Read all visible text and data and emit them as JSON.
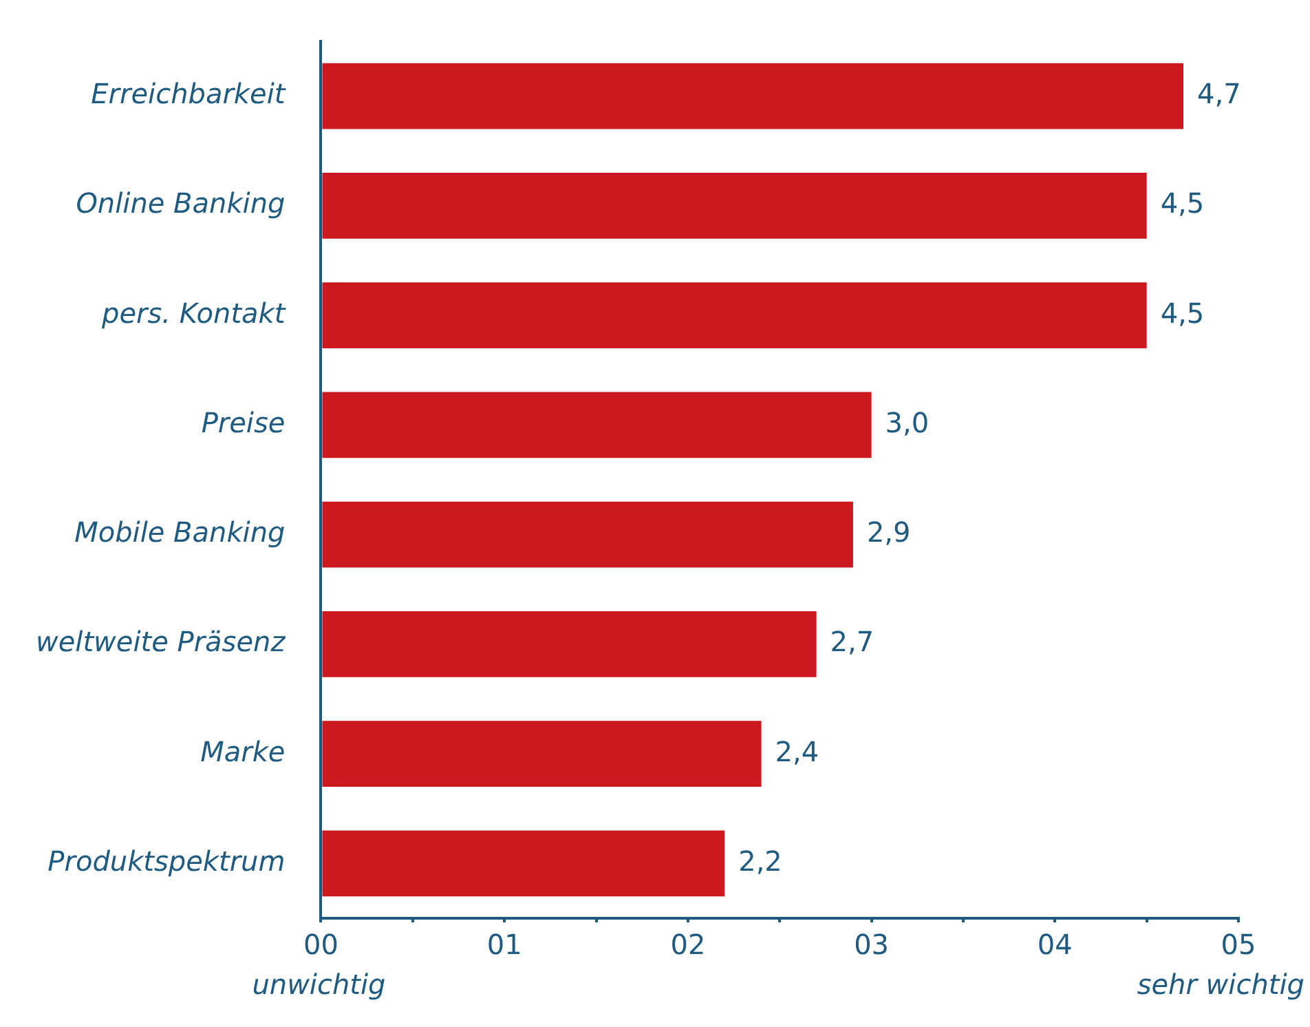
{
  "chart_data": {
    "type": "bar",
    "orientation": "horizontal",
    "categories": [
      "Erreichbarkeit",
      "Online Banking",
      "pers. Kontakt",
      "Preise",
      "Mobile Banking",
      "weltweite Präsenz",
      "Marke",
      "Produktspektrum"
    ],
    "values": [
      4.7,
      4.5,
      4.5,
      3.0,
      2.9,
      2.7,
      2.4,
      2.2
    ],
    "value_labels": [
      "4,7",
      "4,5",
      "4,5",
      "3,0",
      "2,9",
      "2,7",
      "2,4",
      "2,2"
    ],
    "color": "#cc181e",
    "xlim": [
      0,
      5
    ],
    "xticks": [
      {
        "value": 0,
        "label": "00"
      },
      {
        "value": 0.5,
        "label": null
      },
      {
        "value": 1,
        "label": "01"
      },
      {
        "value": 1.5,
        "label": null
      },
      {
        "value": 2,
        "label": "02"
      },
      {
        "value": 2.5,
        "label": null
      },
      {
        "value": 3,
        "label": "03"
      },
      {
        "value": 3.5,
        "label": null
      },
      {
        "value": 4,
        "label": "04"
      },
      {
        "value": 4.5,
        "label": null
      },
      {
        "value": 5,
        "label": "05"
      }
    ],
    "annotations": [
      "unwichtig",
      "sehr wichtig"
    ],
    "grid": false,
    "legend": false
  }
}
